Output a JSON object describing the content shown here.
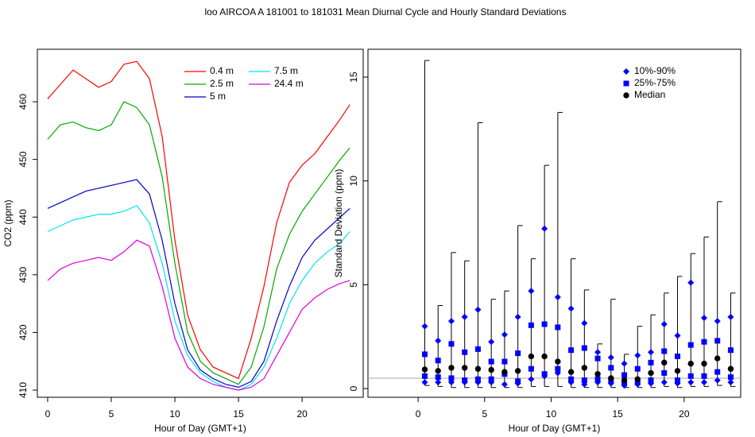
{
  "title": "loo   AIRCOA A   181001 to 181031   Mean Diurnal Cycle and Hourly Standard Deviations",
  "chart_data": [
    {
      "type": "line",
      "xlabel": "Hour of Day (GMT+1)",
      "ylabel": "CO2 (ppm)",
      "xlim": [
        -0.81,
        24.8
      ],
      "ylim": [
        408.76,
        469.1
      ],
      "xticks": [
        0,
        5,
        10,
        15,
        20
      ],
      "yticks": [
        410,
        420,
        430,
        440,
        450,
        460
      ],
      "legend": "top-center",
      "x": [
        0,
        1,
        2,
        3,
        4,
        5,
        6,
        7,
        8,
        9,
        10,
        11,
        12,
        13,
        14,
        15,
        16,
        17,
        18,
        19,
        20,
        21,
        22,
        23,
        23.75
      ],
      "series": [
        {
          "name": "0.4 m",
          "color": "#ff0000",
          "values": [
            460.5,
            463,
            465.5,
            464,
            462.5,
            463.5,
            466.5,
            467,
            464,
            454,
            436,
            423,
            417,
            414,
            413,
            412,
            419,
            428,
            439,
            446,
            449,
            451,
            454,
            457,
            459.5
          ]
        },
        {
          "name": "2.5 m",
          "color": "#00aa00",
          "values": [
            453.5,
            456,
            456.5,
            455.5,
            455,
            456,
            460,
            459,
            456,
            447,
            432,
            420,
            415,
            413,
            412,
            411,
            414,
            421,
            431,
            437,
            441,
            444,
            447,
            450,
            452
          ]
        },
        {
          "name": "5 m",
          "color": "#0000cc",
          "values": [
            441.5,
            442.5,
            443.5,
            444.5,
            445,
            445.5,
            446,
            446.5,
            444,
            436,
            425,
            417,
            413.5,
            412,
            411,
            410.5,
            411.5,
            415,
            422,
            428,
            433,
            436,
            438,
            440,
            441.5
          ]
        },
        {
          "name": "7.5 m",
          "color": "#00e5ee",
          "values": [
            437.5,
            438.5,
            439.5,
            440,
            440.5,
            440.5,
            441,
            442,
            439,
            432,
            422,
            416,
            413,
            411.5,
            410.5,
            410,
            411,
            414,
            419,
            425,
            429,
            432,
            434,
            435.5,
            437.5
          ]
        },
        {
          "name": "24.4 m",
          "color": "#dd00dd",
          "values": [
            429,
            431,
            432,
            432.5,
            433,
            432.5,
            434,
            436,
            435,
            428,
            419,
            414,
            412,
            411,
            410.5,
            410,
            410.5,
            412,
            416,
            420,
            424,
            426,
            427.5,
            428.5,
            429
          ]
        }
      ]
    },
    {
      "type": "quantile",
      "xlabel": "Hour of Day (GMT+1)",
      "ylabel": "Standard Deviation (ppm)",
      "xlim": [
        -3.77,
        24.25
      ],
      "ylim": [
        -0.42,
        16.34
      ],
      "xticks": [
        0,
        5,
        10,
        15,
        20
      ],
      "yticks": [
        0,
        5,
        10,
        15
      ],
      "legend": "top-right",
      "hline": 0.5,
      "hline_color": "#aaaaaa",
      "whisker_color": "#000000",
      "x": [
        0.5,
        1.5,
        2.5,
        3.5,
        4.5,
        5.5,
        6.5,
        7.5,
        8.5,
        9.5,
        10.5,
        11.5,
        12.5,
        13.5,
        14.5,
        15.5,
        16.5,
        17.5,
        18.5,
        19.5,
        20.5,
        21.5,
        22.5,
        23.5
      ],
      "max": [
        15.8,
        4.0,
        6.55,
        6.15,
        12.8,
        4.3,
        4.7,
        7.85,
        6.25,
        10.75,
        13.3,
        6.25,
        4.75,
        2.15,
        4.3,
        1.65,
        3.0,
        3.55,
        4.6,
        5.4,
        6.5,
        7.3,
        9.0,
        4.6
      ],
      "min": [
        0.15,
        0.1,
        0.05,
        0.05,
        0.05,
        0.05,
        0.05,
        0.05,
        0.1,
        0.1,
        0.1,
        0.05,
        0.05,
        0.05,
        0.05,
        0.05,
        0.05,
        0.05,
        0.1,
        0.05,
        0.1,
        0.1,
        0.15,
        0.1
      ],
      "series": [
        {
          "name": "10%-90%",
          "color": "#0000ff",
          "marker": "diamond",
          "values": [
            3.0,
            2.3,
            3.25,
            3.45,
            3.8,
            2.25,
            2.6,
            3.45,
            4.7,
            7.7,
            4.4,
            3.85,
            3.15,
            1.75,
            1.5,
            1.2,
            1.6,
            1.75,
            3.1,
            2.55,
            5.1,
            3.4,
            3.25,
            3.45
          ],
          "low": [
            0.3,
            0.3,
            0.3,
            0.3,
            0.3,
            0.3,
            0.2,
            0.25,
            0.45,
            0.6,
            0.75,
            0.3,
            0.2,
            0.3,
            0.25,
            0.15,
            0.2,
            0.25,
            0.3,
            0.25,
            0.3,
            0.3,
            0.4,
            0.3
          ]
        },
        {
          "name": "25%-75%",
          "color": "#0000ff",
          "marker": "square",
          "values": [
            1.65,
            1.35,
            2.15,
            1.75,
            1.9,
            1.3,
            1.3,
            1.7,
            3.05,
            3.1,
            2.95,
            1.85,
            1.95,
            1.45,
            1.0,
            0.65,
            0.95,
            1.25,
            1.8,
            1.55,
            2.1,
            2.25,
            2.3,
            1.85
          ],
          "low": [
            0.6,
            0.55,
            0.5,
            0.4,
            0.45,
            0.45,
            0.7,
            0.35,
            0.95,
            0.7,
            0.95,
            0.45,
            0.4,
            0.45,
            0.4,
            0.3,
            0.35,
            0.4,
            0.75,
            0.4,
            0.6,
            0.6,
            0.8,
            0.55
          ]
        },
        {
          "name": "Median",
          "color": "#000000",
          "marker": "circle",
          "values": [
            0.92,
            0.85,
            1.0,
            1.0,
            0.95,
            0.9,
            0.8,
            0.85,
            1.55,
            1.55,
            1.3,
            0.8,
            1.0,
            0.7,
            0.5,
            0.4,
            0.45,
            0.75,
            1.25,
            0.85,
            1.2,
            1.2,
            1.45,
            0.95
          ]
        }
      ]
    }
  ]
}
